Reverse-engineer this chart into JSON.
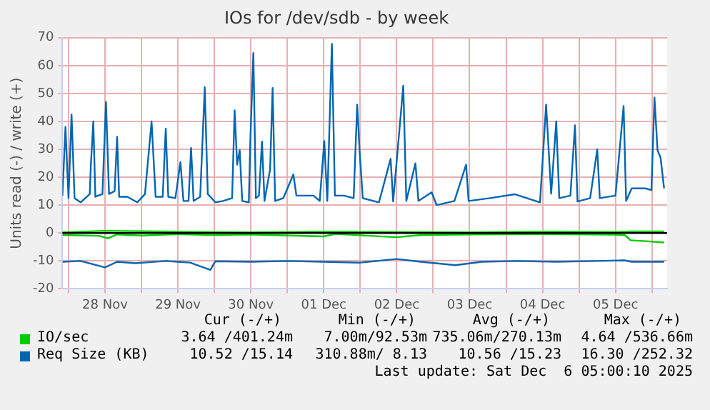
{
  "chart_data": {
    "type": "line",
    "title": "IOs for /dev/sdb - by week",
    "ylabel": "Units read (-) / write (+)",
    "xlim": [
      "2025-11-27T22:00",
      "2025-12-06T05:00"
    ],
    "xticks": [
      {
        "value": "2025-11-28T00:00",
        "label": null
      },
      {
        "value": "2025-11-28T12:00",
        "label": "28 Nov"
      },
      {
        "value": "2025-11-29T00:00",
        "label": null
      },
      {
        "value": "2025-11-29T12:00",
        "label": "29 Nov"
      },
      {
        "value": "2025-11-30T00:00",
        "label": null
      },
      {
        "value": "2025-11-30T12:00",
        "label": "30 Nov"
      },
      {
        "value": "2025-12-01T00:00",
        "label": null
      },
      {
        "value": "2025-12-01T12:00",
        "label": "01 Dec"
      },
      {
        "value": "2025-12-02T00:00",
        "label": null
      },
      {
        "value": "2025-12-02T12:00",
        "label": "02 Dec"
      },
      {
        "value": "2025-12-03T00:00",
        "label": null
      },
      {
        "value": "2025-12-03T12:00",
        "label": "03 Dec"
      },
      {
        "value": "2025-12-04T00:00",
        "label": null
      },
      {
        "value": "2025-12-04T12:00",
        "label": "04 Dec"
      },
      {
        "value": "2025-12-05T00:00",
        "label": null
      },
      {
        "value": "2025-12-05T12:00",
        "label": "05 Dec"
      },
      {
        "value": "2025-12-06T00:00",
        "label": null
      }
    ],
    "ylim": [
      -20,
      70
    ],
    "yticks": [
      -20,
      -10,
      0,
      10,
      20,
      30,
      40,
      50,
      60,
      70
    ],
    "grid": true,
    "legend": "bottom",
    "marker": "none",
    "line_style": "solid",
    "ref_lines": [
      {
        "axis": "y",
        "value": 0,
        "color": "#000000"
      }
    ],
    "series": [
      {
        "name": "IO/sec",
        "color": "#00cc00",
        "x": [
          "2025-11-27T22:00",
          "2025-11-28T12:00",
          "2025-11-29T12:00",
          "2025-11-30T12:00",
          "2025-12-01T12:00",
          "2025-12-02T12:00",
          "2025-12-03T12:00",
          "2025-12-04T12:00",
          "2025-12-05T12:00",
          "2025-12-05T17:00",
          "2025-12-06T04:00"
        ],
        "values": [
          0.3,
          0.8,
          0.5,
          0.3,
          0.5,
          0.4,
          0.3,
          0.5,
          0.4,
          0.6,
          0.6
        ]
      },
      {
        "color": "#00cc00",
        "x": [
          "2025-11-27T22:00",
          "2025-11-28T10:00",
          "2025-11-28T13:00",
          "2025-11-28T16:00",
          "2025-11-29T00:00",
          "2025-11-29T12:00",
          "2025-11-30T00:00",
          "2025-11-30T12:00",
          "2025-12-01T12:00",
          "2025-12-01T16:00",
          "2025-12-02T00:00",
          "2025-12-02T12:00",
          "2025-12-02T20:00",
          "2025-12-03T12:00",
          "2025-12-04T12:00",
          "2025-12-05T12:00",
          "2025-12-05T15:00",
          "2025-12-05T17:00",
          "2025-12-05T22:00",
          "2025-12-06T04:00"
        ],
        "values": [
          -0.7,
          -1.0,
          -1.9,
          -0.5,
          -0.9,
          -0.4,
          -0.7,
          -0.5,
          -1.2,
          -0.3,
          -0.8,
          -1.5,
          -0.7,
          -0.5,
          -0.4,
          -0.6,
          -0.7,
          -2.6,
          -2.9,
          -3.4
        ]
      },
      {
        "name": "Req Size (KB)",
        "color": "#0066b3",
        "x": [
          "2025-11-27T22:00",
          "2025-11-27T23:00",
          "2025-11-28T00:00",
          "2025-11-28T01:00",
          "2025-11-28T02:00",
          "2025-11-28T04:00",
          "2025-11-28T07:00",
          "2025-11-28T07:20",
          "2025-11-28T08:10",
          "2025-11-28T08:50",
          "2025-11-28T11:10",
          "2025-11-28T12:20",
          "2025-11-28T13:20",
          "2025-11-28T15:10",
          "2025-11-28T16:00",
          "2025-11-28T16:40",
          "2025-11-28T19:20",
          "2025-11-28T22:40",
          "2025-11-29T01:10",
          "2025-11-29T03:20",
          "2025-11-29T04:40",
          "2025-11-29T07:00",
          "2025-11-29T08:00",
          "2025-11-29T08:50",
          "2025-11-29T11:10",
          "2025-11-29T12:50",
          "2025-11-29T13:50",
          "2025-11-29T15:30",
          "2025-11-29T16:20",
          "2025-11-29T17:10",
          "2025-11-29T19:20",
          "2025-11-29T20:50",
          "2025-11-29T21:50",
          "2025-11-30T00:20",
          "2025-11-30T02:50",
          "2025-11-30T05:50",
          "2025-11-30T06:40",
          "2025-11-30T07:30",
          "2025-11-30T08:20",
          "2025-11-30T09:10",
          "2025-11-30T11:20",
          "2025-11-30T11:50",
          "2025-11-30T12:50",
          "2025-11-30T13:40",
          "2025-11-30T14:40",
          "2025-11-30T15:40",
          "2025-11-30T16:30",
          "2025-11-30T18:20",
          "2025-11-30T19:10",
          "2025-11-30T20:00",
          "2025-11-30T22:40",
          "2025-12-01T02:00",
          "2025-12-01T03:00",
          "2025-12-01T08:40",
          "2025-12-01T10:40",
          "2025-12-01T12:10",
          "2025-12-01T13:10",
          "2025-12-01T14:40",
          "2025-12-01T15:40",
          "2025-12-01T18:40",
          "2025-12-01T21:50",
          "2025-12-01T23:00",
          "2025-12-01T23:50",
          "2025-12-02T00:50",
          "2025-12-02T06:10",
          "2025-12-02T10:00",
          "2025-12-02T10:50",
          "2025-12-02T14:10",
          "2025-12-02T15:10",
          "2025-12-02T18:10",
          "2025-12-02T19:10",
          "2025-12-02T23:30",
          "2025-12-03T01:10",
          "2025-12-03T07:00",
          "2025-12-03T10:50",
          "2025-12-03T11:40",
          "2025-12-03T18:40",
          "2025-12-04T02:50",
          "2025-12-04T11:10",
          "2025-12-04T13:10",
          "2025-12-04T14:50",
          "2025-12-04T16:30",
          "2025-12-04T17:30",
          "2025-12-04T21:10",
          "2025-12-04T22:40",
          "2025-12-04T23:30",
          "2025-12-05T03:40",
          "2025-12-05T06:00",
          "2025-12-05T06:50",
          "2025-12-05T12:00",
          "2025-12-05T14:40",
          "2025-12-05T15:30",
          "2025-12-05T17:20",
          "2025-12-05T21:50",
          "2025-12-05T23:50",
          "2025-12-06T00:50",
          "2025-12-06T01:50",
          "2025-12-06T02:50",
          "2025-12-06T04:00"
        ],
        "values": [
          13.4,
          38,
          12.5,
          42.5,
          12.5,
          11,
          14,
          24,
          40,
          13,
          14,
          47,
          14,
          15,
          34.5,
          13,
          13,
          11,
          14,
          40,
          13,
          13,
          37.4,
          13,
          12.5,
          25.4,
          11.5,
          11.5,
          30.5,
          11.5,
          13,
          52.3,
          14,
          11,
          11.5,
          12.5,
          44,
          24.5,
          29.7,
          11.5,
          11,
          33,
          64.5,
          12.5,
          13.4,
          32.8,
          11.5,
          22.8,
          52,
          11.5,
          12.5,
          21,
          13.4,
          13.4,
          11.5,
          33,
          11.5,
          67.8,
          13.4,
          13.4,
          12.5,
          46,
          28.8,
          12.5,
          11,
          26.6,
          11.3,
          52.8,
          11.5,
          25,
          11.5,
          14.6,
          10,
          11.5,
          24.5,
          11.5,
          12.5,
          13.9,
          11,
          46,
          14.1,
          40,
          12.5,
          13.4,
          38.6,
          11.3,
          12.5,
          30,
          12.5,
          13.4,
          45.5,
          11.5,
          16,
          16,
          15.4,
          48.5,
          29.7,
          27,
          16
        ]
      },
      {
        "color": "#0066b3",
        "x": [
          "2025-11-27T22:00",
          "2025-11-28T04:00",
          "2025-11-28T12:00",
          "2025-11-28T16:00",
          "2025-11-28T22:00",
          "2025-11-29T08:00",
          "2025-11-29T16:00",
          "2025-11-29T22:40",
          "2025-11-30T00:20",
          "2025-11-30T12:00",
          "2025-12-01T00:00",
          "2025-12-01T12:00",
          "2025-12-02T00:00",
          "2025-12-02T12:00",
          "2025-12-02T20:00",
          "2025-12-03T07:20",
          "2025-12-03T16:00",
          "2025-12-04T04:00",
          "2025-12-04T16:00",
          "2025-12-05T06:00",
          "2025-12-05T15:00",
          "2025-12-05T17:20",
          "2025-12-06T04:00"
        ],
        "values": [
          -10.3,
          -10,
          -12.3,
          -10.3,
          -10.8,
          -10,
          -10.6,
          -13.2,
          -10.1,
          -10.3,
          -10,
          -10.3,
          -10.6,
          -9.3,
          -10.3,
          -11.5,
          -10.3,
          -10,
          -10.3,
          -10,
          -9.8,
          -10.3,
          -10.3
        ]
      }
    ],
    "annotations": [
      "Cur (-/+)",
      "Min (-/+)",
      "Avg (-/+)",
      "Max (-/+)",
      "3.64 /401.24m",
      "7.00m/92.53m",
      "735.06m/270.13m",
      "4.64 /536.66m",
      "10.52 /15.14",
      "310.88m/ 8.13",
      "10.56 /15.23",
      "16.30 /252.32",
      "Last update: Sat Dec  6 05:00:10 2025"
    ]
  }
}
